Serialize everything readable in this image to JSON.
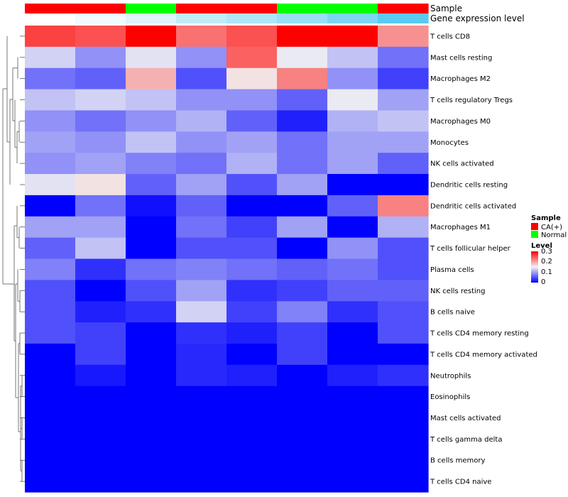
{
  "chart_data": {
    "type": "heatmap",
    "title": "",
    "annotation_tracks": [
      {
        "label": "Sample",
        "values": [
          "CA(+)",
          "CA(+)",
          "Normal",
          "CA(+)",
          "CA(+)",
          "Normal",
          "Normal",
          "CA(+)"
        ]
      },
      {
        "label": "Gene expression level",
        "values": [
          0.0,
          0.05,
          0.12,
          0.22,
          0.28,
          0.36,
          0.46,
          0.58
        ]
      }
    ],
    "rows": [
      "T cells CD8",
      "Mast cells resting",
      "Macrophages M2",
      "T cells regulatory  Tregs",
      "Macrophages M0",
      "Monocytes",
      "NK cells activated",
      "Dendritic cells resting",
      "Dendritic cells activated",
      "Macrophages M1",
      "T cells follicular helper",
      "Plasma cells",
      "NK cells resting",
      "B cells naive",
      "T cells CD4 memory resting",
      "T cells CD4 memory activated",
      "Neutrophils",
      "Eosinophils",
      "Mast cells activated",
      "T cells gamma delta",
      "B cells memory",
      "T cells CD4 naive"
    ],
    "values": [
      [
        0.26,
        0.25,
        0.3,
        0.23,
        0.25,
        0.3,
        0.3,
        0.21
      ],
      [
        0.13,
        0.09,
        0.14,
        0.09,
        0.24,
        0.145,
        0.12,
        0.07
      ],
      [
        0.07,
        0.06,
        0.19,
        0.05,
        0.16,
        0.22,
        0.09,
        0.04
      ],
      [
        0.12,
        0.13,
        0.12,
        0.09,
        0.09,
        0.06,
        0.145,
        0.1
      ],
      [
        0.09,
        0.07,
        0.09,
        0.11,
        0.06,
        0.02,
        0.11,
        0.12
      ],
      [
        0.1,
        0.09,
        0.12,
        0.09,
        0.1,
        0.07,
        0.1,
        0.1
      ],
      [
        0.09,
        0.1,
        0.08,
        0.07,
        0.11,
        0.07,
        0.1,
        0.06
      ],
      [
        0.14,
        0.16,
        0.06,
        0.1,
        0.05,
        0.1,
        0.0,
        0.0
      ],
      [
        0.0,
        0.07,
        0.01,
        0.06,
        0.0,
        0.0,
        0.06,
        0.22
      ],
      [
        0.1,
        0.1,
        0.0,
        0.07,
        0.04,
        0.1,
        0.0,
        0.11
      ],
      [
        0.06,
        0.12,
        0.0,
        0.05,
        0.05,
        0.0,
        0.09,
        0.05
      ],
      [
        0.08,
        0.03,
        0.07,
        0.08,
        0.07,
        0.06,
        0.07,
        0.05
      ],
      [
        0.05,
        0.0,
        0.05,
        0.1,
        0.03,
        0.04,
        0.06,
        0.06
      ],
      [
        0.05,
        0.02,
        0.03,
        0.13,
        0.04,
        0.08,
        0.03,
        0.05
      ],
      [
        0.05,
        0.04,
        0.0,
        0.03,
        0.02,
        0.04,
        0.0,
        0.05
      ],
      [
        0.0,
        0.04,
        0.0,
        0.025,
        0.0,
        0.04,
        0.0,
        0.0
      ],
      [
        0.0,
        0.015,
        0.0,
        0.025,
        0.02,
        0.0,
        0.02,
        0.03
      ],
      [
        0.0,
        0.0,
        0.0,
        0.0,
        0.0,
        0.0,
        0.0,
        0.0
      ],
      [
        0.0,
        0.0,
        0.0,
        0.0,
        0.0,
        0.0,
        0.0,
        0.0
      ],
      [
        0.0,
        0.0,
        0.0,
        0.0,
        0.0,
        0.0,
        0.0,
        0.0
      ],
      [
        0.0,
        0.0,
        0.0,
        0.0,
        0.0,
        0.0,
        0.0,
        0.0
      ],
      [
        0.0,
        0.0,
        0.0,
        0.0,
        0.0,
        0.0,
        0.0,
        0.0
      ]
    ],
    "color_scale": {
      "min": 0,
      "mid": 0.15,
      "max": 0.3,
      "low_color": "#0000ff",
      "mid_color": "#f2f2f2",
      "high_color": "#ff0000"
    },
    "legend": {
      "sample_title": "Sample",
      "sample_entries": [
        {
          "label": "CA(+)",
          "color": "#ff0000"
        },
        {
          "label": "Normal",
          "color": "#00ff00"
        }
      ],
      "level_title": "Level",
      "level_ticks": [
        "0.3",
        "0.2",
        "0.1",
        "0"
      ],
      "position": "right"
    },
    "gene_expression_colors": {
      "low": "#ffffff",
      "high": "#54c8ee"
    },
    "dendrogram": "rows-left"
  }
}
